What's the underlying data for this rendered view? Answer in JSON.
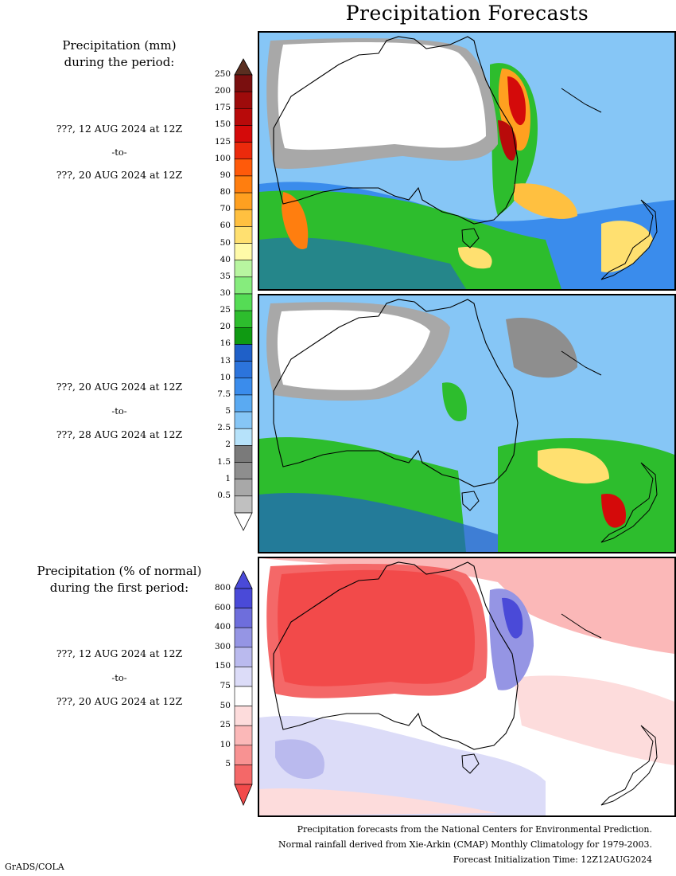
{
  "title": "Precipitation Forecasts",
  "legend_mm": {
    "heading_line1": "Precipitation (mm)",
    "heading_line2": "during the period:",
    "labels": [
      "250",
      "200",
      "175",
      "150",
      "125",
      "100",
      "90",
      "80",
      "70",
      "60",
      "50",
      "40",
      "35",
      "30",
      "25",
      "20",
      "16",
      "13",
      "10",
      "7.5",
      "5",
      "2.5",
      "2",
      "1.5",
      "1",
      "0.5"
    ],
    "colors": [
      "#7a0f0f",
      "#9e0b0b",
      "#b80a0a",
      "#d40a0a",
      "#eb2a0c",
      "#ff5a0a",
      "#ff7e0f",
      "#ffa020",
      "#ffc040",
      "#ffe070",
      "#fffaa8",
      "#b8f5a0",
      "#86ec7d",
      "#55dc55",
      "#2dbd2d",
      "#0f9a12",
      "#1f60c8",
      "#2c74dc",
      "#3a8cec",
      "#5aaaf2",
      "#86c6f6",
      "#b6e2fa",
      "#7a7a7a",
      "#8e8e8e",
      "#a8a8a8",
      "#c0c0c0"
    ]
  },
  "legend_pct": {
    "heading_line1": "Precipitation (% of normal)",
    "heading_line2": "during the first period:",
    "labels": [
      "800",
      "600",
      "400",
      "300",
      "150",
      "75",
      "50",
      "25",
      "10",
      "5"
    ],
    "colors": [
      "#4a4ad8",
      "#6e6edc",
      "#9595e4",
      "#babaee",
      "#dcdcf8",
      "#ffffff",
      "#fddcdc",
      "#fbb8b8",
      "#f89292",
      "#f46868"
    ]
  },
  "periods": [
    {
      "start": "???, 12 AUG 2024 at 12Z",
      "sep": "-to-",
      "end": "???, 20 AUG 2024 at 12Z"
    },
    {
      "start": "???, 20 AUG 2024 at 12Z",
      "sep": "-to-",
      "end": "???, 28 AUG 2024 at 12Z"
    },
    {
      "start": "???, 12 AUG 2024 at 12Z",
      "sep": "-to-",
      "end": "???, 20 AUG 2024 at 12Z"
    }
  ],
  "footer": {
    "line1": "Precipitation forecasts from the National Centers for Environmental Prediction.",
    "line2": "Normal rainfall derived from Xie-Arkin (CMAP) Monthly Climatology for 1979-2003.",
    "line3": "Forecast Initialization Time: 12Z12AUG2024"
  },
  "credit": "GrADS/COLA"
}
